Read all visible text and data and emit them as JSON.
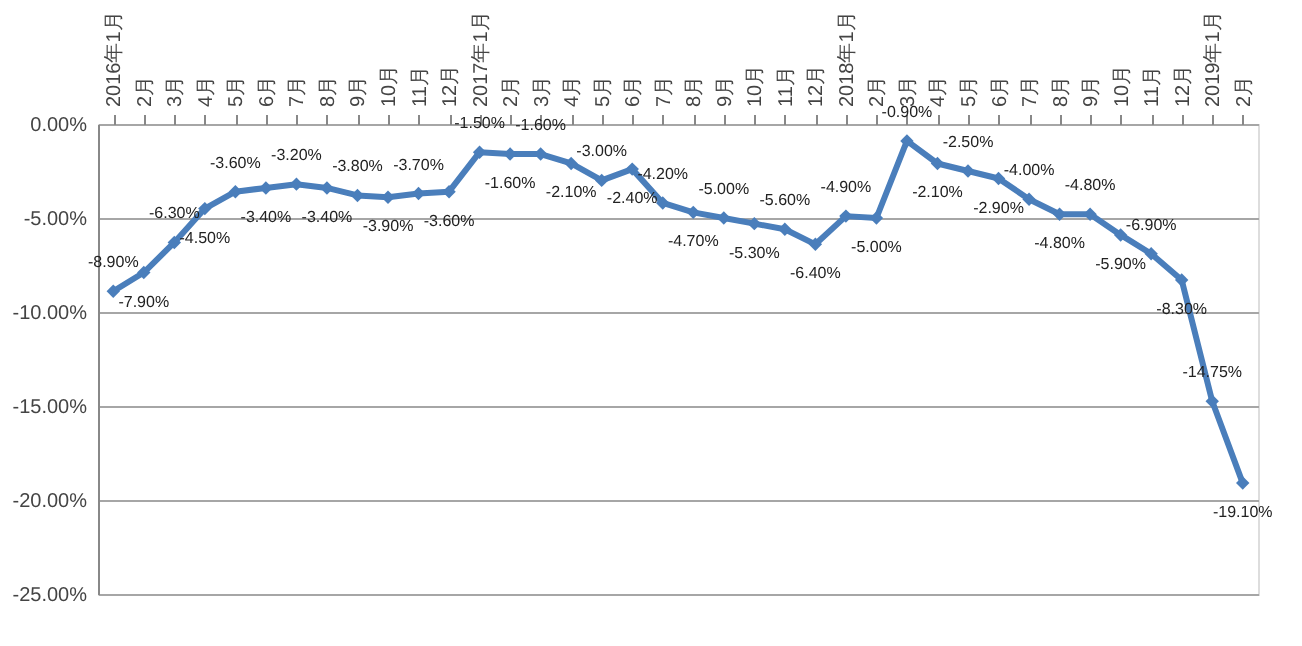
{
  "chart_data": {
    "type": "line",
    "categories": [
      "2016年1月",
      "2月",
      "3月",
      "4月",
      "5月",
      "6月",
      "7月",
      "8月",
      "9月",
      "10月",
      "11月",
      "12月",
      "2017年1月",
      "2月",
      "3月",
      "4月",
      "5月",
      "6月",
      "7月",
      "8月",
      "9月",
      "10月",
      "11月",
      "12月",
      "2018年1月",
      "2月",
      "3月",
      "4月",
      "5月",
      "6月",
      "7月",
      "8月",
      "9月",
      "10月",
      "11月",
      "12月",
      "2019年1月",
      "2月"
    ],
    "series": [
      {
        "color": "#4a7ebb",
        "values": [
          -8.9,
          -7.9,
          -6.3,
          -4.5,
          -3.6,
          -3.4,
          -3.2,
          -3.4,
          -3.8,
          -3.9,
          -3.7,
          -3.6,
          -1.5,
          -1.6,
          -1.6,
          -2.1,
          -3.0,
          -2.4,
          -4.2,
          -4.7,
          -5.0,
          -5.3,
          -5.6,
          -6.4,
          -4.9,
          -5.0,
          -0.9,
          -2.1,
          -2.5,
          -2.9,
          -4.0,
          -4.8,
          -4.8,
          -5.9,
          -6.9,
          -8.3,
          -14.75,
          -19.1
        ],
        "value_labels": [
          "-8.90%",
          "-7.90%",
          "-6.30%",
          "-4.50%",
          "-3.60%",
          "-3.40%",
          "-3.20%",
          "-3.40%",
          "-3.80%",
          "-3.90%",
          "-3.70%",
          "-3.60%",
          "-1.50%",
          "-1.60%",
          "-1.60%",
          "-2.10%",
          "-3.00%",
          "-2.40%",
          "-4.20%",
          "-4.70%",
          "-5.00%",
          "-5.30%",
          "-5.60%",
          "-6.40%",
          "-4.90%",
          "-5.00%",
          "-0.90%",
          "-2.10%",
          "-2.50%",
          "-2.90%",
          "-4.00%",
          "-4.80%",
          "-4.80%",
          "-5.90%",
          "-6.90%",
          "-8.30%",
          "-14.75%",
          "-19.10%"
        ]
      }
    ],
    "ylim": [
      -25,
      0
    ],
    "yticks": [
      {
        "value": 0,
        "label": "0.00%"
      },
      {
        "value": -5,
        "label": "-5.00%"
      },
      {
        "value": -10,
        "label": "-10.00%"
      },
      {
        "value": -15,
        "label": "-15.00%"
      },
      {
        "value": -20,
        "label": "-20.00%"
      },
      {
        "value": -25,
        "label": "-25.00%"
      }
    ],
    "grid": "y",
    "marker": "diamond",
    "line_style": "solid"
  }
}
